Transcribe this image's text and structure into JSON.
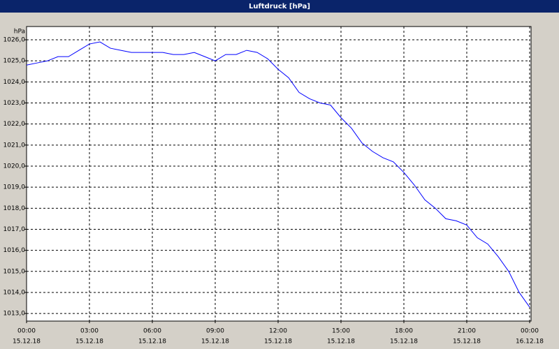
{
  "chart_data": {
    "type": "line",
    "title": "Luftdruck [hPa]",
    "y_unit": "hPa",
    "x": [
      0,
      0.5,
      1,
      1.5,
      2,
      2.5,
      3,
      3.5,
      4,
      4.5,
      5,
      5.5,
      6,
      6.5,
      7,
      7.5,
      8,
      8.5,
      9,
      9.5,
      10,
      10.5,
      11,
      11.5,
      12,
      12.5,
      13,
      13.5,
      14,
      14.5,
      15,
      15.5,
      16,
      16.5,
      17,
      17.5,
      18,
      18.5,
      19,
      19.5,
      20,
      20.5,
      21,
      21.5,
      22,
      22.5,
      23,
      23.5,
      24
    ],
    "series": [
      {
        "color": "#0000ff",
        "values": [
          1024.8,
          1024.9,
          1025.0,
          1025.2,
          1025.2,
          1025.5,
          1025.8,
          1025.9,
          1025.6,
          1025.5,
          1025.4,
          1025.4,
          1025.4,
          1025.4,
          1025.3,
          1025.3,
          1025.4,
          1025.2,
          1025.0,
          1025.3,
          1025.3,
          1025.5,
          1025.4,
          1025.1,
          1024.6,
          1024.2,
          1023.5,
          1023.2,
          1023.0,
          1022.9,
          1022.3,
          1021.8,
          1021.1,
          1020.7,
          1020.4,
          1020.2,
          1019.7,
          1019.1,
          1018.4,
          1018.0,
          1017.5,
          1017.4,
          1017.2,
          1016.6,
          1016.3,
          1015.7,
          1015.0,
          1014.0,
          1013.3
        ]
      }
    ],
    "xlim": [
      0,
      24
    ],
    "xticks": [
      {
        "value": 0,
        "label": "00:00"
      },
      {
        "value": 3,
        "label": "03:00"
      },
      {
        "value": 6,
        "label": "06:00"
      },
      {
        "value": 9,
        "label": "09:00"
      },
      {
        "value": 12,
        "label": "12:00"
      },
      {
        "value": 15,
        "label": "15:00"
      },
      {
        "value": 18,
        "label": "18:00"
      },
      {
        "value": 21,
        "label": "21:00"
      },
      {
        "value": 24,
        "label": "00:00"
      }
    ],
    "xtick_dates": [
      "15.12.18",
      "15.12.18",
      "15.12.18",
      "15.12.18",
      "15.12.18",
      "15.12.18",
      "15.12.18",
      "15.12.18",
      "16.12.18"
    ],
    "ylim": [
      1012.64,
      1026.63
    ],
    "yticks": [
      {
        "value": 1013,
        "label": "1013,0"
      },
      {
        "value": 1014,
        "label": "1014,0"
      },
      {
        "value": 1015,
        "label": "1015,0"
      },
      {
        "value": 1016,
        "label": "1016,0"
      },
      {
        "value": 1017,
        "label": "1017,0"
      },
      {
        "value": 1018,
        "label": "1018,0"
      },
      {
        "value": 1019,
        "label": "1019,0"
      },
      {
        "value": 1020,
        "label": "1020,0"
      },
      {
        "value": 1021,
        "label": "1021,0"
      },
      {
        "value": 1022,
        "label": "1022,0"
      },
      {
        "value": 1023,
        "label": "1023,0"
      },
      {
        "value": 1024,
        "label": "1024,0"
      },
      {
        "value": 1025,
        "label": "1025,0"
      },
      {
        "value": 1026,
        "label": "1026,0"
      }
    ],
    "grid": true
  }
}
